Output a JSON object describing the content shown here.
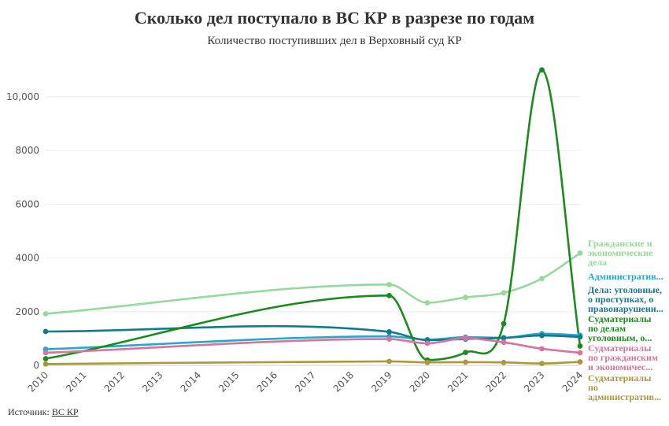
{
  "header": {
    "title": "Сколько дел поступало в ВС КР в разрезе по годам",
    "subtitle": "Количество поступивших дел в Верховный суд КР"
  },
  "footer": {
    "source_prefix": "Источник:",
    "source_link": "ВС КР"
  },
  "chart_data": {
    "type": "line",
    "title": "Сколько дел поступало в ВС КР в разрезе по годам",
    "subtitle": "Количество поступивших дел в Верховный суд КР",
    "xlabel": "",
    "ylabel": "",
    "x": [
      2010,
      2019,
      2020,
      2021,
      2022,
      2023,
      2024
    ],
    "x_ticks": [
      "2010",
      "2011",
      "2012",
      "2013",
      "2014",
      "2015",
      "2016",
      "2017",
      "2018",
      "2019",
      "2020",
      "2021",
      "2022",
      "2023",
      "2024"
    ],
    "y_ticks": [
      "0",
      "2000",
      "4000",
      "6000",
      "8000",
      "10,000"
    ],
    "ylim": [
      0,
      11200
    ],
    "xlim": [
      2010,
      2024
    ],
    "grid": true,
    "legend": "labels at line ends (right)",
    "series": [
      {
        "name": "Гражданские и экономические дела",
        "label_lines": [
          "Гражданские и",
          "экономические",
          "дела"
        ],
        "color": "#95d99b",
        "values": [
          1920,
          3010,
          2330,
          2530,
          2700,
          3230,
          4180
        ]
      },
      {
        "name": "Административ...",
        "label_lines": [
          "Административ..."
        ],
        "color": "#27a7cc",
        "values": [
          600,
          1080,
          960,
          1050,
          1030,
          1180,
          1120
        ]
      },
      {
        "name": "Дела: уголовные, о проступках, о правонарушени...",
        "label_lines": [
          "Дела: уголовные,",
          "о проступках, о",
          "правонарушени..."
        ],
        "color": "#127a8f",
        "values": [
          1260,
          1250,
          940,
          980,
          1020,
          1110,
          1060
        ]
      },
      {
        "name": "Судматериалы по делам уголовным, о...",
        "label_lines": [
          "Судматериалы",
          "по делам",
          "уголовным, о..."
        ],
        "color": "#1c8a1c",
        "values": [
          250,
          2600,
          200,
          480,
          1550,
          11000,
          720
        ]
      },
      {
        "name": "Судматериалы по гражданским и экономичес...",
        "label_lines": [
          "Судматериалы",
          "по гражданским",
          "и экономичес..."
        ],
        "color": "#d9739b",
        "values": [
          470,
          980,
          820,
          1010,
          860,
          620,
          470
        ]
      },
      {
        "name": "Судматериалы по административ...",
        "label_lines": [
          "Судматериалы",
          "по",
          "административ..."
        ],
        "color": "#a89a3c",
        "values": [
          50,
          150,
          110,
          120,
          110,
          70,
          130
        ]
      }
    ]
  }
}
